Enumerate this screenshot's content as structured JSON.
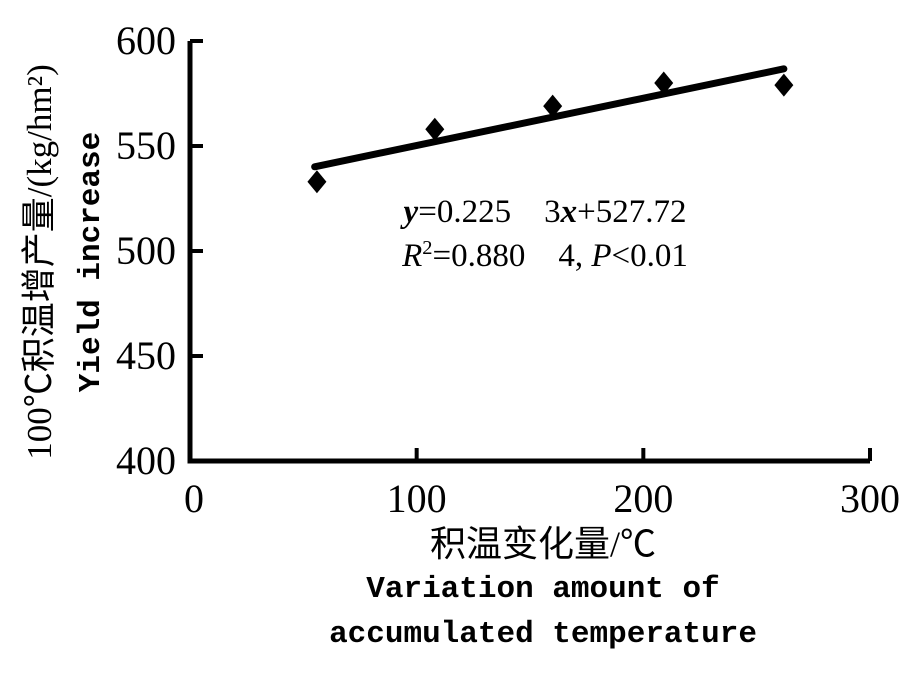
{
  "figure": {
    "background": "#ffffff",
    "ink": "#000000"
  },
  "chart_data": {
    "type": "scatter",
    "title": "",
    "points": {
      "x": [
        56,
        108,
        160,
        209,
        262
      ],
      "y": [
        533,
        558,
        569,
        580,
        579
      ]
    },
    "marker": "diamond",
    "marker_color": "#000000",
    "trendline": {
      "slope": 0.2253,
      "intercept": 527.72,
      "x_start": 55,
      "x_end": 262,
      "color": "#000000"
    },
    "xlim": [
      0,
      300
    ],
    "ylim": [
      400,
      600
    ],
    "xticks": [
      0,
      100,
      200,
      300
    ],
    "yticks": [
      400,
      450,
      500,
      550,
      600
    ],
    "xtick_labels": [
      "0",
      "100",
      "200",
      "300"
    ],
    "ytick_labels": [
      "400",
      "450",
      "500",
      "550",
      "600"
    ],
    "grid": false,
    "legend": false,
    "xlabel": {
      "zh": "积温变化量/℃",
      "en_line1": "Variation amount of",
      "en_line2": "accumulated temperature"
    },
    "ylabel": {
      "zh_units": "100℃积温增产量/(kg/hm²)",
      "en": "Yield increase"
    },
    "annotation": {
      "line1": [
        {
          "t": "y",
          "italic": true,
          "bold": true
        },
        {
          "t": "=0.225 3"
        },
        {
          "t": "x",
          "italic": true,
          "bold": true
        },
        {
          "t": "+527.72"
        }
      ],
      "line2": [
        {
          "t": "R",
          "italic": true
        },
        {
          "t": "2",
          "sup": true
        },
        {
          "t": "=0.880 4, "
        },
        {
          "t": "P",
          "italic": true
        },
        {
          "t": "<0.01"
        }
      ]
    }
  }
}
